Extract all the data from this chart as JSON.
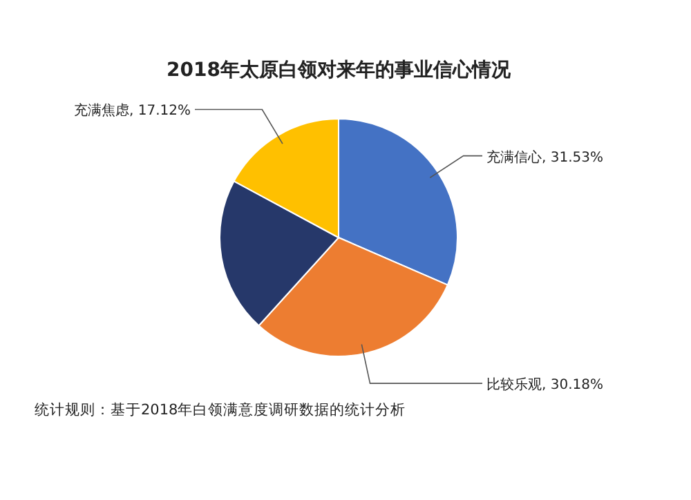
{
  "chart_data": {
    "type": "pie",
    "title": "2018年太原白领对来年的事业信心情况",
    "categories": [
      "充满信心",
      "比较乐观",
      null,
      "充满焦虑"
    ],
    "values": [
      31.53,
      30.18,
      21.17,
      17.12
    ],
    "value_labels": [
      "31.53%",
      "30.18%",
      null,
      "17.12%"
    ],
    "colors": [
      "#4472c4",
      "#ed7d31",
      "#26386a",
      "#ffc000"
    ],
    "annotations": [
      "统计规则：基于2018年白领满意度调研数据的统计分析"
    ]
  }
}
